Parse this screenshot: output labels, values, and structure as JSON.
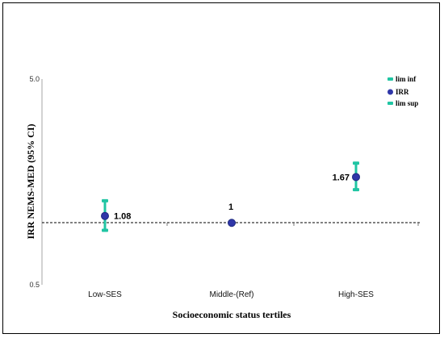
{
  "chart_data": {
    "type": "scatter",
    "xlabel": "Socioeconomic status tertiles",
    "ylabel": "IRR NEMS-MED (95% CI)",
    "ylim": [
      0.5,
      5.0
    ],
    "y_scale": "log",
    "y_ticks": [
      "5.0",
      "0.5"
    ],
    "categories": [
      "Low-SES",
      "Middle-(Ref)",
      "High-SES"
    ],
    "series": [
      {
        "name": "lim inf",
        "values": [
          0.92,
          null,
          1.45
        ]
      },
      {
        "name": "IRR",
        "values": [
          1.08,
          1,
          1.67
        ]
      },
      {
        "name": "lim sup",
        "values": [
          1.28,
          null,
          1.95
        ]
      }
    ],
    "data_labels": [
      "1.08",
      "1",
      "1.67"
    ],
    "reference_line": 1,
    "legend_position": "top-right",
    "colors": {
      "ci": "#20c5a3",
      "irr_fill": "#2f36a8",
      "irr_stroke": "#1e2a80"
    },
    "legend": [
      {
        "label": "lim inf",
        "icon": "bar-marker"
      },
      {
        "label": "IRR",
        "icon": "circle-marker"
      },
      {
        "label": "lim sup",
        "icon": "bar-marker"
      }
    ]
  }
}
